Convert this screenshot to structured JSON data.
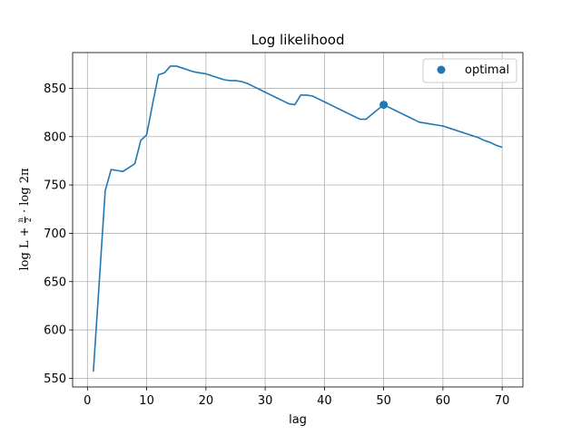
{
  "chart_data": {
    "type": "line",
    "title": "Log likelihood",
    "xlabel": "lag",
    "ylabel": {
      "prefix": "log L + ",
      "frac_num": "n",
      "frac_den": "2",
      "suffix": " · log 2π"
    },
    "xlim": [
      -2.5,
      73.5
    ],
    "ylim": [
      541,
      887
    ],
    "xticks": [
      0,
      10,
      20,
      30,
      40,
      50,
      60,
      70
    ],
    "yticks": [
      550,
      600,
      650,
      700,
      750,
      800,
      850
    ],
    "grid": true,
    "legend_placement": "top-right",
    "line_color": "#1f77b4",
    "series": [
      {
        "x": [
          1,
          2,
          3,
          4,
          5,
          6,
          7,
          8,
          9,
          10,
          11,
          12,
          13,
          14,
          15,
          16,
          17,
          18,
          19,
          20,
          21,
          22,
          23,
          24,
          25,
          26,
          27,
          28,
          29,
          30,
          31,
          32,
          33,
          34,
          35,
          36,
          37,
          38,
          39,
          40,
          41,
          42,
          43,
          44,
          45,
          46,
          47,
          48,
          49,
          50,
          51,
          52,
          53,
          54,
          55,
          56,
          57,
          58,
          59,
          60,
          61,
          62,
          63,
          64,
          65,
          66,
          67,
          68,
          69,
          70
        ],
        "y": [
          557,
          650,
          744,
          766,
          765,
          764,
          768,
          772,
          796,
          802,
          834,
          864,
          866,
          873,
          873,
          871,
          869,
          867,
          866,
          865,
          863,
          861,
          859,
          858,
          858,
          857,
          855,
          852,
          849,
          846,
          843,
          840,
          837,
          834,
          833,
          843,
          843,
          842,
          839,
          836,
          833,
          830,
          827,
          824,
          821,
          818,
          818,
          823,
          828,
          833,
          830,
          827,
          824,
          821,
          818,
          815,
          814,
          813,
          812,
          811,
          809,
          807,
          805,
          803,
          801,
          799,
          796,
          794,
          791,
          789
        ]
      }
    ],
    "optimal_point": {
      "name": "optimal",
      "x": 50,
      "y": 833
    }
  }
}
